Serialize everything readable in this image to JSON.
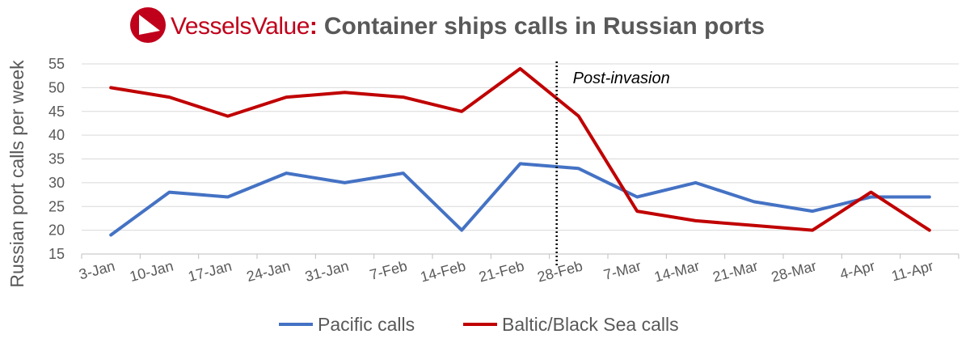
{
  "header": {
    "brand": "VesselsValue",
    "brand_separator": ":",
    "title": "Container ships calls in Russian ports",
    "logo_icon": "vesselsvalue-logo-icon",
    "brand_color": "#c0001a",
    "title_color": "#595959"
  },
  "chart_data": {
    "type": "line",
    "title": "Container ships calls in Russian ports",
    "xlabel": "",
    "ylabel": "Russian port calls per week",
    "categories": [
      "3-Jan",
      "10-Jan",
      "17-Jan",
      "24-Jan",
      "31-Jan",
      "7-Feb",
      "14-Feb",
      "21-Feb",
      "28-Feb",
      "7-Mar",
      "14-Mar",
      "21-Mar",
      "28-Mar",
      "4-Apr",
      "11-Apr"
    ],
    "ylim": [
      15,
      55
    ],
    "yticks": [
      15,
      20,
      25,
      30,
      35,
      40,
      45,
      50,
      55
    ],
    "grid": true,
    "legend_position": "bottom",
    "series": [
      {
        "name": "Pacific calls",
        "color": "#4472c4",
        "values": [
          19,
          28,
          27,
          32,
          30,
          32,
          20,
          34,
          33,
          27,
          30,
          26,
          24,
          27,
          27
        ]
      },
      {
        "name": "Baltic/Black Sea calls",
        "color": "#c00000",
        "values": [
          50,
          48,
          44,
          48,
          49,
          48,
          45,
          54,
          44,
          24,
          22,
          21,
          20,
          28,
          20
        ]
      }
    ],
    "annotations": [
      {
        "text": "Post-invasion",
        "style": "dotted vertical line",
        "x_position": "between 21-Feb and 28-Feb"
      }
    ]
  }
}
